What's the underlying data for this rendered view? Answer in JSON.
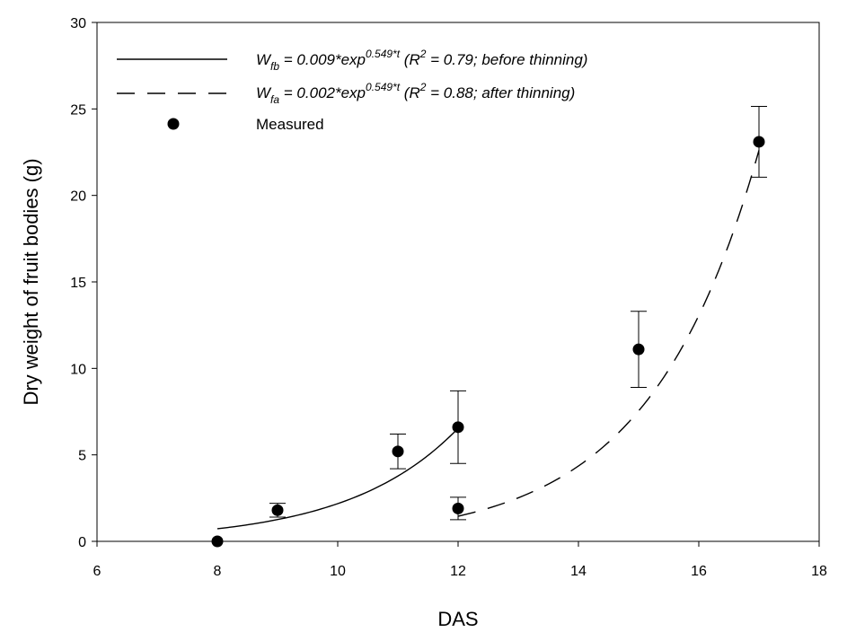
{
  "chart_data": {
    "type": "scatter",
    "xlabel": "DAS",
    "ylabel": "Dry weight of fruit bodies (g)",
    "xlim": [
      6,
      18
    ],
    "ylim": [
      0,
      30
    ],
    "x_ticks": [
      6,
      8,
      10,
      12,
      14,
      16,
      18
    ],
    "y_ticks": [
      0,
      5,
      10,
      15,
      20,
      25,
      30
    ],
    "grid": false,
    "legend_position": "top-left",
    "series": [
      {
        "name": "Measured",
        "marker": "filled-circle",
        "color": "#000000",
        "points": [
          {
            "x": 8,
            "y": 0.0,
            "err": 0.0
          },
          {
            "x": 9,
            "y": 1.8,
            "err": 0.4
          },
          {
            "x": 11,
            "y": 5.2,
            "err": 1.0
          },
          {
            "x": 12,
            "y": 6.6,
            "err": 2.1
          },
          {
            "x": 12,
            "y": 1.9,
            "err": 0.65
          },
          {
            "x": 15,
            "y": 11.1,
            "err": 2.2
          },
          {
            "x": 17,
            "y": 23.1,
            "err": 2.05
          }
        ]
      }
    ],
    "fits": [
      {
        "style": "solid",
        "color": "#000000",
        "coef": 0.009,
        "rate": 0.549,
        "x_range": [
          8,
          12
        ],
        "legend": {
          "w": "W",
          "sub": "fb",
          "eq": " = 0.009*exp",
          "sup": "0.549*t",
          "r2_open": " (R",
          "r2_sup": "2",
          "r2_rest": " = 0.79; before thinning)"
        }
      },
      {
        "style": "dashed",
        "color": "#000000",
        "coef": 0.002,
        "rate": 0.549,
        "x_range": [
          12,
          17
        ],
        "legend": {
          "w": "W",
          "sub": "fa",
          "eq": " = 0.002*exp",
          "sup": "0.549*t",
          "r2_open": " (R",
          "r2_sup": "2",
          "r2_rest": " = 0.88; after thinning)"
        }
      }
    ]
  }
}
